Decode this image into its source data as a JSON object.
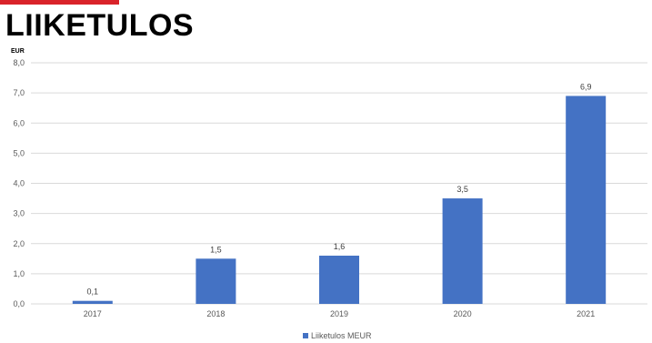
{
  "page": {
    "title": "LIIKETULOS"
  },
  "colors": {
    "accent": "#d9232a",
    "bar": "#4472c4",
    "gridline": "#d9d9d9",
    "text": "#595959"
  },
  "chart_data": {
    "type": "bar",
    "categories": [
      "2017",
      "2018",
      "2019",
      "2020",
      "2021"
    ],
    "series": [
      {
        "name": "Liiketulos MEUR",
        "values": [
          0.1,
          1.5,
          1.6,
          3.5,
          6.9
        ],
        "data_labels": [
          "0,1",
          "1,5",
          "1,6",
          "3,5",
          "6,9"
        ]
      }
    ],
    "ylabel": "EUR",
    "ylim": [
      0,
      8
    ],
    "yticks": [
      0,
      1,
      2,
      3,
      4,
      5,
      6,
      7,
      8
    ],
    "ytick_labels": [
      "0,0",
      "1,0",
      "2,0",
      "3,0",
      "4,0",
      "5,0",
      "6,0",
      "7,0",
      "8,0"
    ],
    "grid": true,
    "legend_position": "bottom"
  }
}
